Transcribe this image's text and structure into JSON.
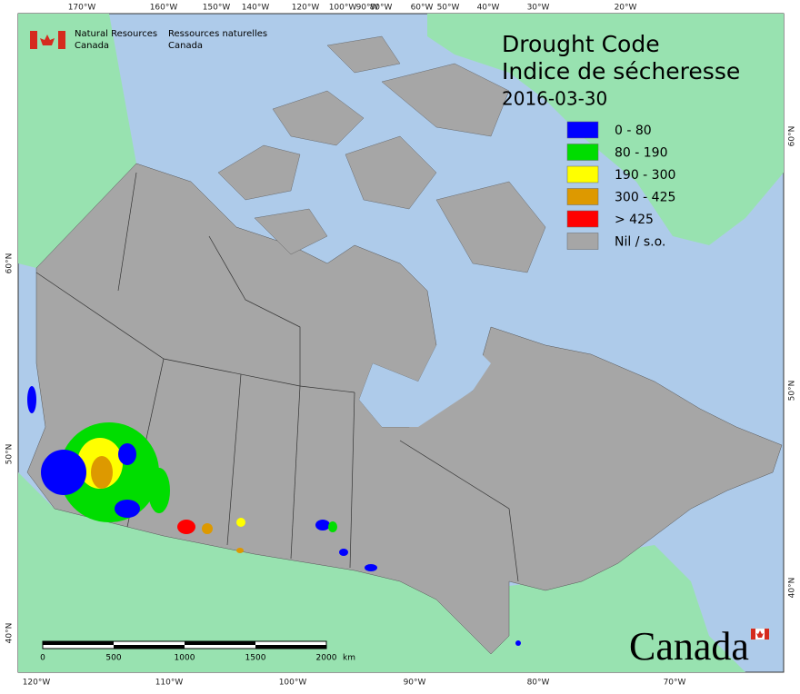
{
  "header": {
    "org_en": [
      "Natural Resources",
      "Canada"
    ],
    "org_fr": [
      "Ressources naturelles",
      "Canada"
    ]
  },
  "title": [
    "Drought Code",
    "Indice de sécheresse"
  ],
  "date": "2016-03-30",
  "legend": [
    {
      "label": "0 - 80",
      "color": "#0000ff"
    },
    {
      "label": "80 - 190",
      "color": "#00dd00"
    },
    {
      "label": "190 - 300",
      "color": "#ffff00"
    },
    {
      "label": "300 - 425",
      "color": "#dd9900"
    },
    {
      "label": "> 425",
      "color": "#ff0000"
    },
    {
      "label": "Nil / s.o.",
      "color": "#a6a6a6"
    }
  ],
  "graticule": {
    "top": [
      "170°W",
      "160°W",
      "150°W",
      "140°W",
      "120°W",
      "100°W",
      "90°W",
      "80°W",
      "60°W",
      "50°W",
      "40°W",
      "30°W",
      "20°W"
    ],
    "bottom": [
      "120°W",
      "110°W",
      "100°W",
      "90°W",
      "80°W",
      "70°W"
    ],
    "left": [
      "60°N",
      "50°N",
      "40°N"
    ],
    "right": [
      "60°N",
      "50°N",
      "40°N"
    ]
  },
  "scale": {
    "ticks": [
      0,
      500,
      1000,
      1500,
      2000
    ],
    "unit": "km"
  },
  "wordmark": "Canada"
}
